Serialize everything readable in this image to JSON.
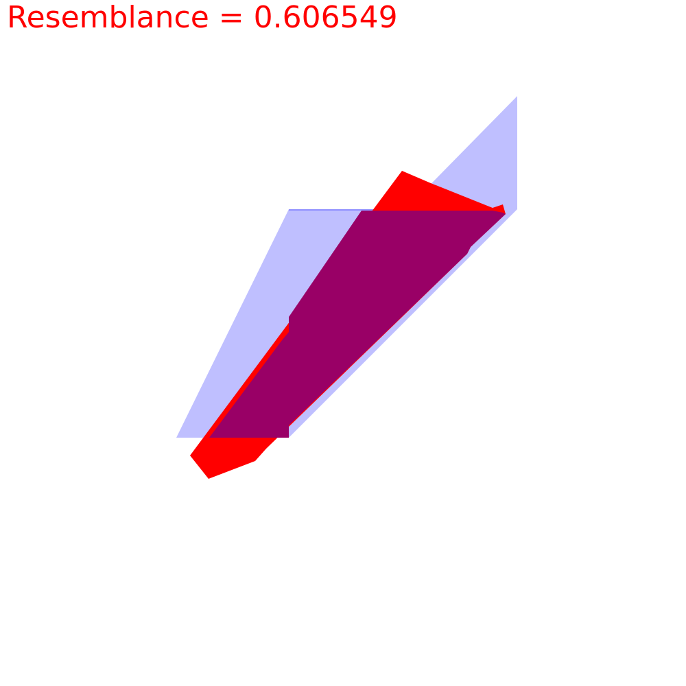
{
  "header": {
    "resemblance_text": "Resemblance = 0.606549"
  },
  "colors": {
    "text": "#ff0000",
    "target_fill": "#0000ff",
    "candidate_fill": "#ff0000",
    "overlap_fill": "#990066",
    "background": "#ffffff"
  }
}
